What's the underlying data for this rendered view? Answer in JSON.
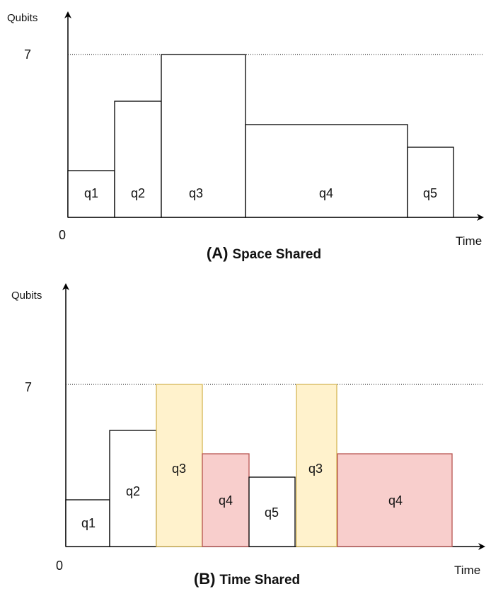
{
  "panel_a": {
    "y_axis_label": "Qubits",
    "x_axis_label": "Time",
    "origin_label": "0",
    "limit_label": "7",
    "caption_prefix": "(A)",
    "caption_text": "Space Shared",
    "blocks": [
      {
        "label": "q1"
      },
      {
        "label": "q2"
      },
      {
        "label": "q3"
      },
      {
        "label": "q4"
      },
      {
        "label": "q5"
      }
    ]
  },
  "panel_b": {
    "y_axis_label": "Qubits",
    "x_axis_label": "Time",
    "origin_label": "0",
    "limit_label": "7",
    "caption_prefix": "(B)",
    "caption_text": "Time Shared",
    "blocks": [
      {
        "label": "q1"
      },
      {
        "label": "q2"
      },
      {
        "label": "q3"
      },
      {
        "label": "q4"
      },
      {
        "label": "q5"
      },
      {
        "label": "q3"
      },
      {
        "label": "q4"
      }
    ]
  },
  "colors": {
    "q3_fill": "#fff2cc",
    "q3_stroke": "#d6b656",
    "q4_fill": "#f8cecc",
    "q4_stroke": "#b85450",
    "default_fill": "#ffffff",
    "default_stroke": "#000000"
  }
}
